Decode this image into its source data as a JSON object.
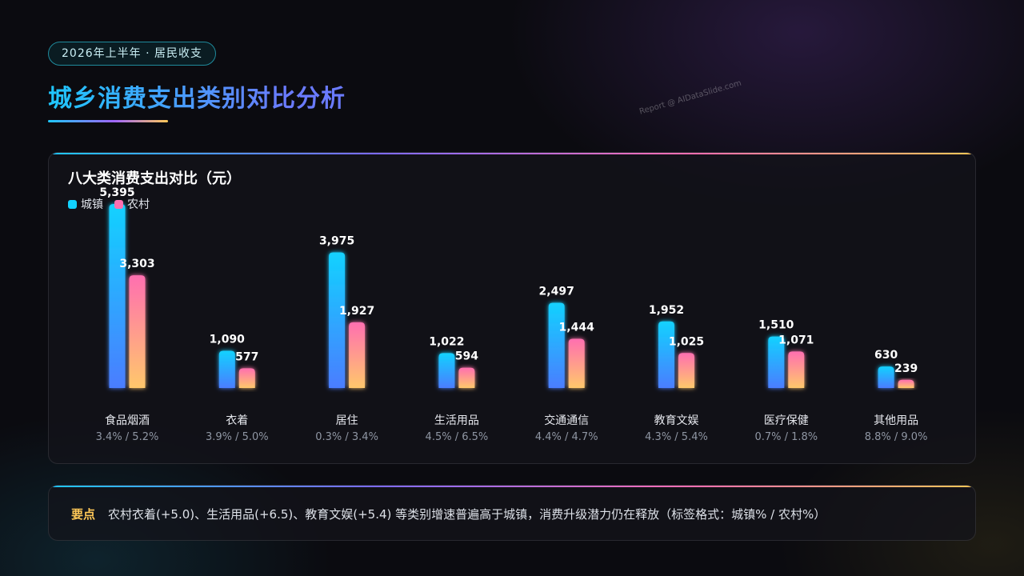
{
  "header": {
    "tag": "2026年上半年 · 居民收支",
    "title": "城乡消费支出类别对比分析",
    "watermark": "Report @ AIDataSlide.com"
  },
  "chart_data": {
    "type": "bar",
    "title": "八大类消费支出对比（元）",
    "categories": [
      "食品烟酒",
      "衣着",
      "居住",
      "生活用品",
      "交通通信",
      "教育文娱",
      "医疗保健",
      "其他用品"
    ],
    "growth_labels": [
      "3.4% / 5.2%",
      "3.9% / 5.0%",
      "0.3% / 3.4%",
      "4.5% / 6.5%",
      "4.4% / 4.7%",
      "4.3% / 5.4%",
      "0.7% / 1.8%",
      "8.8% / 9.0%"
    ],
    "series": [
      {
        "name": "城镇",
        "values": [
          5395,
          1090,
          3975,
          1022,
          2497,
          1952,
          1510,
          630
        ],
        "value_labels": [
          "5,395",
          "1,090",
          "3,975",
          "1,022",
          "2,497",
          "1,952",
          "1,510",
          "630"
        ]
      },
      {
        "name": "农村",
        "values": [
          3303,
          577,
          1927,
          594,
          1444,
          1025,
          1071,
          239
        ],
        "value_labels": [
          "3,303",
          "577",
          "1,927",
          "594",
          "1,444",
          "1,025",
          "1,071",
          "239"
        ]
      }
    ],
    "legend_position": "top-left",
    "grid": false,
    "colors": {
      "urban": [
        "#12d2ff",
        "#4a7dff"
      ],
      "rural": [
        "#ff6fb0",
        "#ffc86b"
      ]
    }
  },
  "note": {
    "label": "要点",
    "text": "农村衣着(+5.0)、生活用品(+6.5)、教育文娱(+5.4) 等类别增速普遍高于城镇，消费升级潜力仍在释放（标签格式：城镇% / 农村%）"
  }
}
